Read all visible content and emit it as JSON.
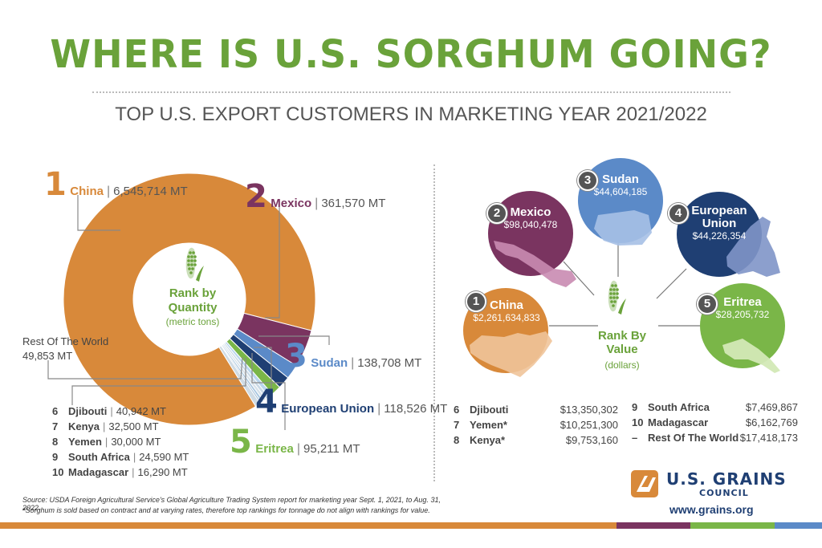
{
  "header": {
    "title": "WHERE IS U.S. SORGHUM GOING?",
    "subtitle": "TOP U.S. EXPORT CUSTOMERS IN MARKETING YEAR 2021/2022"
  },
  "quantity": {
    "center_title_1": "Rank by",
    "center_title_2": "Quantity",
    "center_unit": "(metric tons)",
    "top": [
      {
        "rank": "1",
        "name": "China",
        "value": "6,545,714 MT",
        "color": "#d8893a"
      },
      {
        "rank": "2",
        "name": "Mexico",
        "value": "361,570 MT",
        "color": "#7a3460"
      },
      {
        "rank": "3",
        "name": "Sudan",
        "value": "138,708 MT",
        "color": "#5b8ac8"
      },
      {
        "rank": "4",
        "name": "European Union",
        "value": "118,526 MT",
        "color": "#1f3f73"
      },
      {
        "rank": "5",
        "name": "Eritrea",
        "value": "95,211 MT",
        "color": "#7ab648"
      }
    ],
    "rest_label": "Rest Of The World",
    "rest_value": "49,853  MT",
    "others": [
      {
        "rank": "6",
        "name": "Djibouti",
        "value": "40,942 MT"
      },
      {
        "rank": "7",
        "name": "Kenya",
        "value": "32,500 MT"
      },
      {
        "rank": "8",
        "name": "Yemen",
        "value": "30,000 MT"
      },
      {
        "rank": "9",
        "name": "South Africa",
        "value": "24,590 MT"
      },
      {
        "rank": "10",
        "name": "Madagascar",
        "value": "16,290 MT"
      }
    ]
  },
  "value": {
    "center_title_1": "Rank By",
    "center_title_2": "Value",
    "center_unit": "(dollars)",
    "top": [
      {
        "rank": "1",
        "name": "China",
        "value": "$2,261,634,833",
        "color": "#d8893a"
      },
      {
        "rank": "2",
        "name": "Mexico",
        "value": "$98,040,478",
        "color": "#7a3460"
      },
      {
        "rank": "3",
        "name": "Sudan",
        "value": "$44,604,185",
        "color": "#5b8ac8"
      },
      {
        "rank": "4",
        "name_1": "European",
        "name_2": "Union",
        "value": "$44,226,354",
        "color": "#1f3f73"
      },
      {
        "rank": "5",
        "name": "Eritrea",
        "value": "$28,205,732",
        "color": "#7ab648"
      }
    ],
    "others_left": [
      {
        "rank": "6",
        "name": "Djibouti",
        "value": "$13,350,302"
      },
      {
        "rank": "7",
        "name": "Yemen*",
        "value": "$10,251,300"
      },
      {
        "rank": "8",
        "name": "Kenya*",
        "value": "$9,753,160"
      }
    ],
    "others_right": [
      {
        "rank": "9",
        "name": "South Africa",
        "value": "$7,469,867"
      },
      {
        "rank": "10",
        "name": "Madagascar",
        "value": "$6,162,769"
      },
      {
        "rank": "–",
        "name": "Rest Of The World",
        "value": "$17,418,173"
      }
    ]
  },
  "footer": {
    "source": "Source: USDA Foreign Agricultural Service's Global Agriculture Trading System report for marketing year Sept. 1, 2021, to Aug. 31, 2022.",
    "note": "*Sorghum is sold based on contract and at varying rates, therefore top rankings for tonnage do not align with rankings for value.",
    "org_line_1": "U.S. GRAINS",
    "org_line_2": "COUNCIL",
    "url": "www.grains.org"
  },
  "colors": {
    "title_green": "#6aa23a",
    "china": "#d8893a",
    "mexico": "#7a3460",
    "sudan": "#5b8ac8",
    "eu": "#1f3f73",
    "eritrea": "#7ab648",
    "council_navy": "#1f3f73"
  },
  "chart_data": [
    {
      "type": "pie",
      "title": "Rank by Quantity",
      "unit": "(metric tons)",
      "categories": [
        "China",
        "Mexico",
        "Sudan",
        "European Union",
        "Eritrea",
        "Djibouti",
        "Kenya",
        "Yemen",
        "South Africa",
        "Madagascar",
        "Rest Of The World"
      ],
      "values": [
        6545714,
        361570,
        138708,
        118526,
        95211,
        40942,
        32500,
        30000,
        24590,
        16290,
        49853
      ]
    },
    {
      "type": "bar",
      "title": "Rank By Value",
      "unit": "(dollars)",
      "categories": [
        "China",
        "Mexico",
        "Sudan",
        "European Union",
        "Eritrea",
        "Djibouti",
        "Yemen*",
        "Kenya*",
        "South Africa",
        "Madagascar",
        "Rest Of The World"
      ],
      "values": [
        2261634833,
        98040478,
        44604185,
        44226354,
        28205732,
        13350302,
        10251300,
        9753160,
        7469867,
        6162769,
        17418173
      ]
    }
  ]
}
